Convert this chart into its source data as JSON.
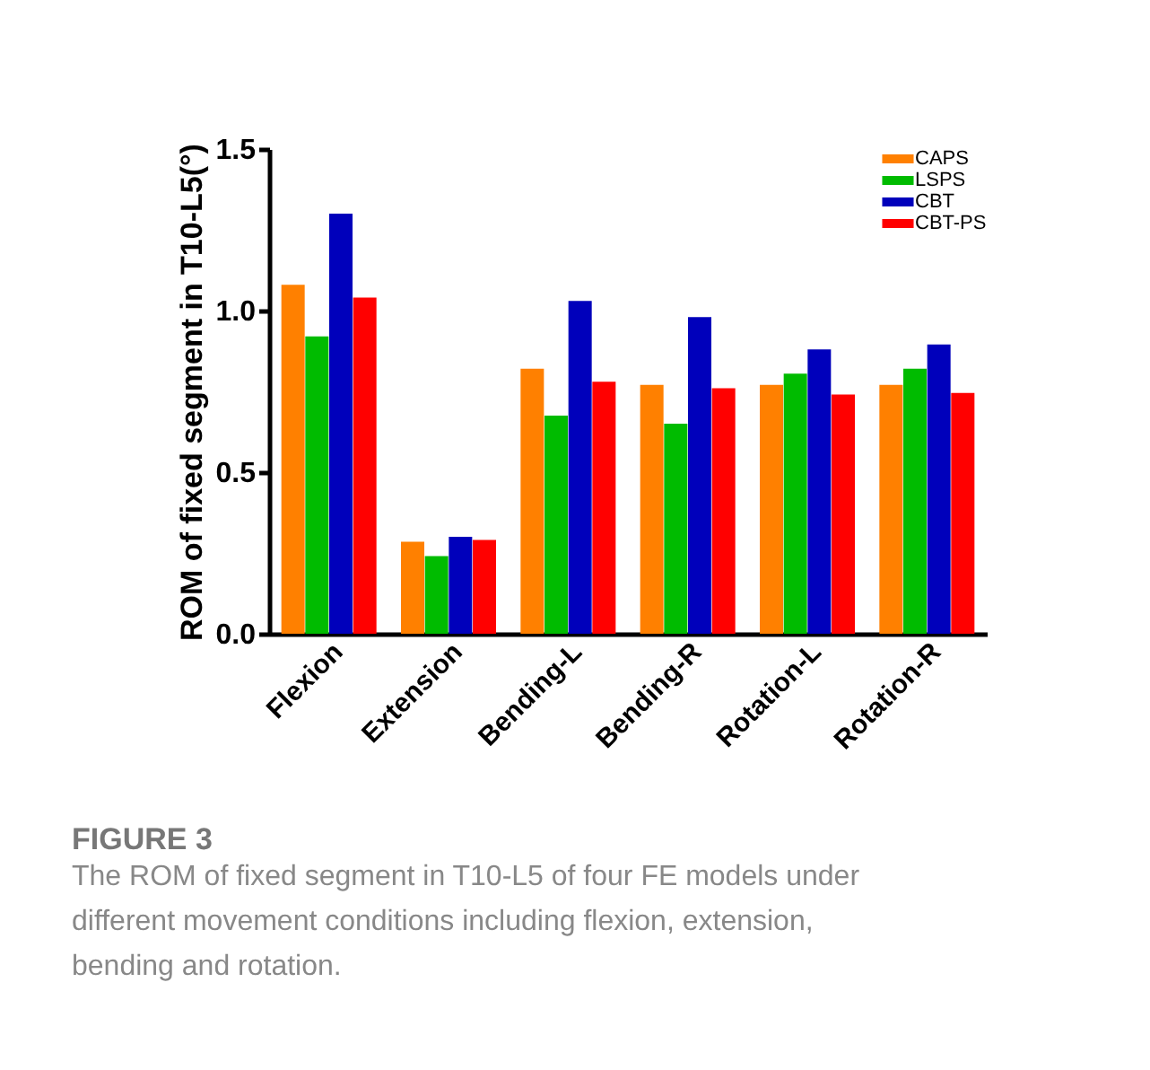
{
  "chart_data": {
    "type": "bar",
    "ylabel": "ROM of fixed segment in T10-L5(°)",
    "categories": [
      "Flexion",
      "Extension",
      "Bending-L",
      "Bending-R",
      "Rotation-L",
      "Rotation-R"
    ],
    "series": [
      {
        "name": "CAPS",
        "color": "#ff8000",
        "values": [
          1.08,
          0.285,
          0.82,
          0.77,
          0.77,
          0.77
        ]
      },
      {
        "name": "LSPS",
        "color": "#00bb00",
        "values": [
          0.92,
          0.24,
          0.675,
          0.65,
          0.805,
          0.82
        ]
      },
      {
        "name": "CBT",
        "color": "#0000bb",
        "values": [
          1.3,
          0.3,
          1.03,
          0.98,
          0.88,
          0.895
        ]
      },
      {
        "name": "CBT-PS",
        "color": "#ff0000",
        "values": [
          1.04,
          0.29,
          0.78,
          0.76,
          0.74,
          0.745
        ]
      }
    ],
    "ylim": [
      0,
      1.5
    ],
    "yticks": [
      {
        "value": 0,
        "label": "0.0"
      },
      0.5,
      {
        "value": 1,
        "label": "1.0"
      },
      1.5
    ],
    "grid": false,
    "legend": "top right",
    "annotations": [
      "FIGURE 3",
      "The ROM of fixed segment in T10-L5 of four FE models under different movement conditions including flexion, extension, bending and rotation."
    ]
  }
}
